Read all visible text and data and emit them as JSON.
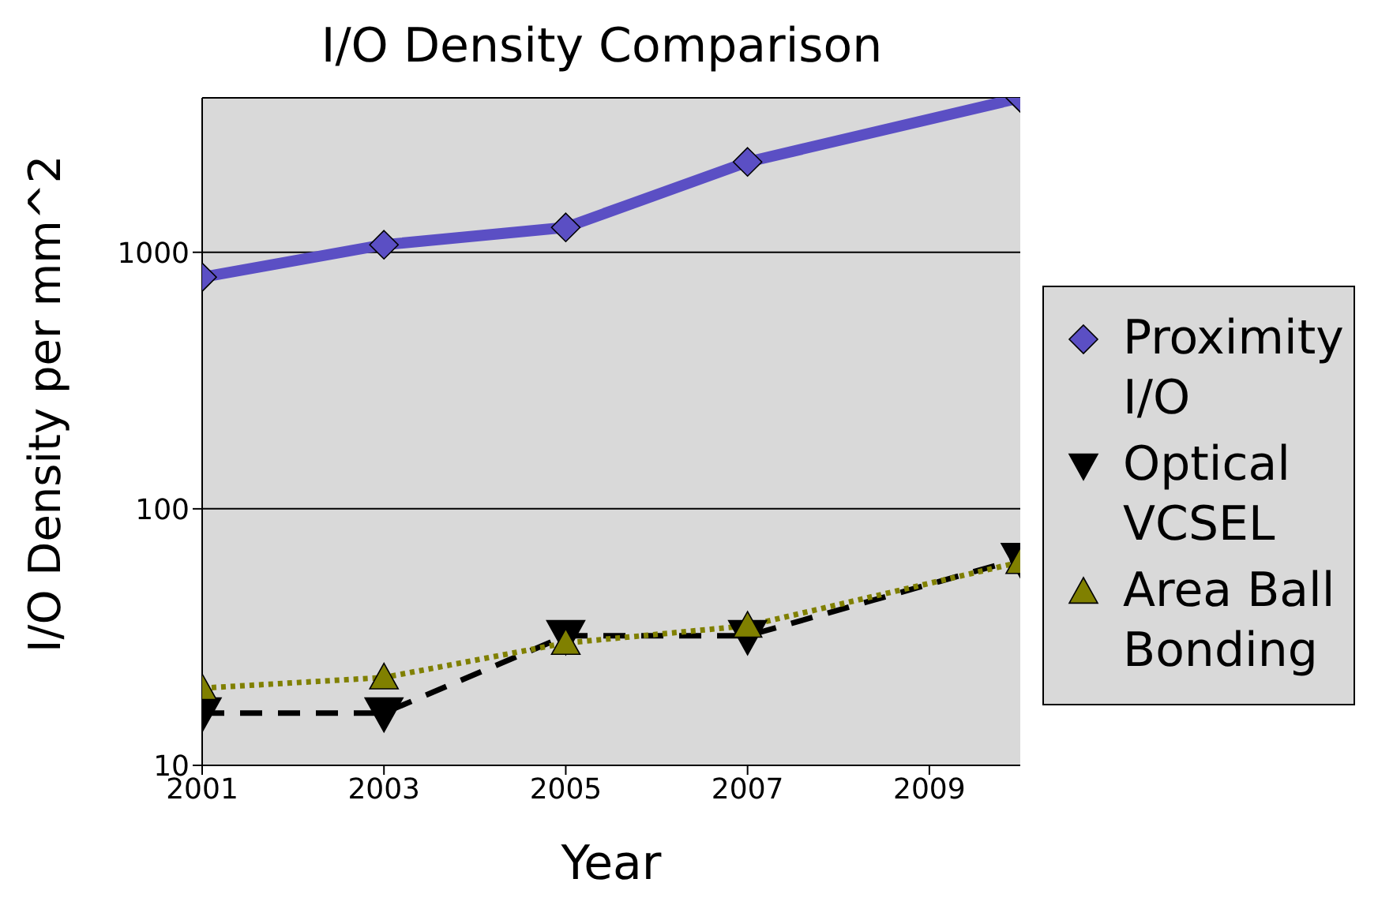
{
  "chart_data": {
    "type": "line",
    "title": "I/O Density Comparison",
    "xlabel": "Year",
    "ylabel": "I/O Density per mm^2",
    "x": [
      2001,
      2003,
      2005,
      2007,
      2010
    ],
    "series": [
      {
        "name": "Proximity I/O",
        "color": "#5b4fc4",
        "values": [
          800,
          1070,
          1250,
          2250,
          4000
        ],
        "marker": "diamond",
        "line_style": "solid"
      },
      {
        "name": "Optical VCSEL",
        "color": "#000000",
        "values": [
          16,
          16,
          32,
          32,
          64
        ],
        "marker": "triangle-down",
        "line_style": "dashed"
      },
      {
        "name": "Area Ball Bonding",
        "color": "#808000",
        "values": [
          20,
          22,
          30,
          35,
          62
        ],
        "marker": "triangle",
        "line_style": "dotted"
      }
    ],
    "xlim": [
      2001,
      2010
    ],
    "xticks": [
      2001,
      2003,
      2005,
      2007,
      2009
    ],
    "ylim": [
      10,
      4000
    ],
    "yticks": [
      10,
      100,
      1000
    ],
    "log": true,
    "grid": "y",
    "legend": "right"
  }
}
